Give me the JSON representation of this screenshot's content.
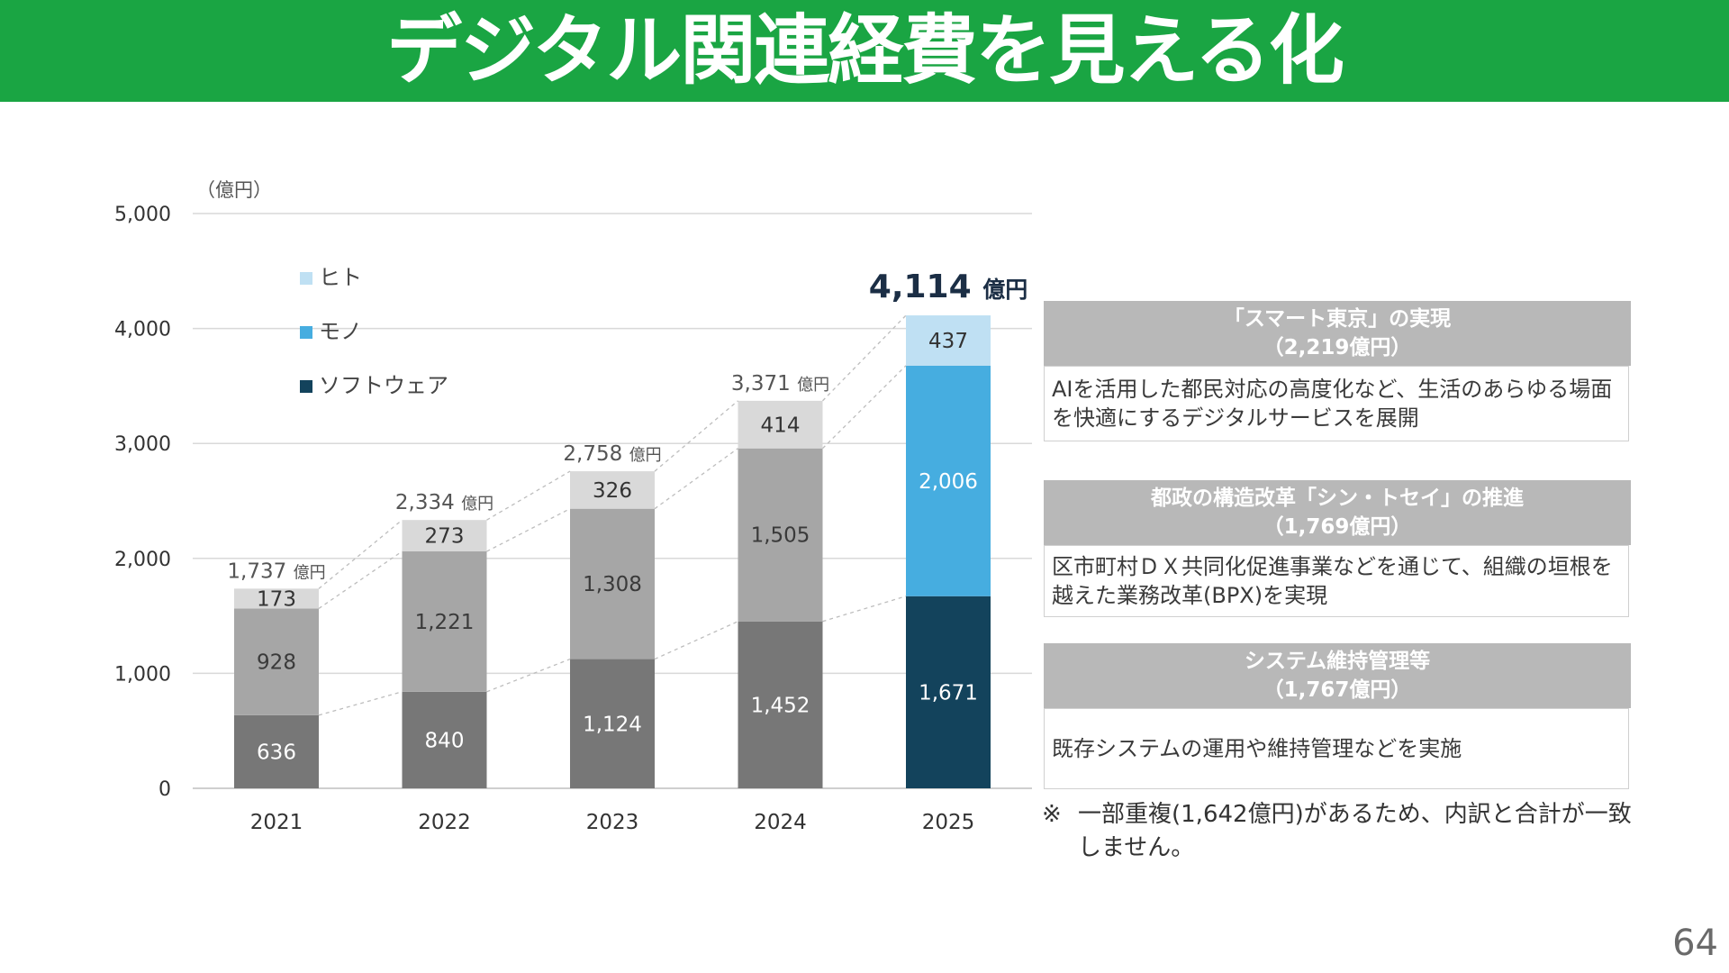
{
  "header": {
    "title": "デジタル関連経費を見える化"
  },
  "chart_data": {
    "type": "bar",
    "stacked": true,
    "unit_label": "（億円）",
    "ylim": [
      0,
      5000
    ],
    "yticks": [
      "5,000",
      "4,000",
      "3,000",
      "2,000",
      "1,000",
      "0"
    ],
    "categories": [
      "2021",
      "2022",
      "2023",
      "2024",
      "2025"
    ],
    "series": [
      {
        "name": "ソフトウェア",
        "values": [
          636,
          840,
          1124,
          1452,
          1671
        ],
        "labels": [
          "636",
          "840",
          "1,124",
          "1,452",
          "1,671"
        ]
      },
      {
        "name": "モノ",
        "values": [
          928,
          1221,
          1308,
          1505,
          2006
        ],
        "labels": [
          "928",
          "1,221",
          "1,308",
          "1,505",
          "2,006"
        ]
      },
      {
        "name": "ヒト",
        "values": [
          173,
          273,
          326,
          414,
          437
        ],
        "labels": [
          "173",
          "273",
          "326",
          "414",
          "437"
        ]
      }
    ],
    "totals": {
      "numbers": [
        "1,737",
        "2,334",
        "2,758",
        "3,371",
        "4,114"
      ],
      "unit": "億円"
    },
    "legend_order": [
      "ヒト",
      "モノ",
      "ソフトウェア"
    ],
    "legend_position": "top-left",
    "grid": true,
    "colors": {
      "past_software": "#777777",
      "past_mono": "#a6a6a6",
      "past_hito": "#d9d9d9",
      "software": "#13435c",
      "mono": "#46ade0",
      "hito": "#bfe0f3"
    }
  },
  "side_boxes": [
    {
      "head_line1": "「スマート東京」の実現",
      "head_line2": "（2,219億円）",
      "body": "AIを活用した都民対応の高度化など、生活のあらゆる場面を快適にするデジタルサービスを展開"
    },
    {
      "head_line1": "都政の構造改革「シン・トセイ」の推進",
      "head_line2": "（1,769億円）",
      "body": "区市町村ＤＸ共同化促進事業などを通じて、組織の垣根を越えた業務改革(BPX)を実現"
    },
    {
      "head_line1": "システム維持管理等",
      "head_line2": "（1,767億円）",
      "body": "既存システムの運用や維持管理などを実施"
    }
  ],
  "note": {
    "mark": "※",
    "text": "一部重複(1,642億円)があるため、内訳と合計が一致しません。"
  },
  "page_number": "64"
}
